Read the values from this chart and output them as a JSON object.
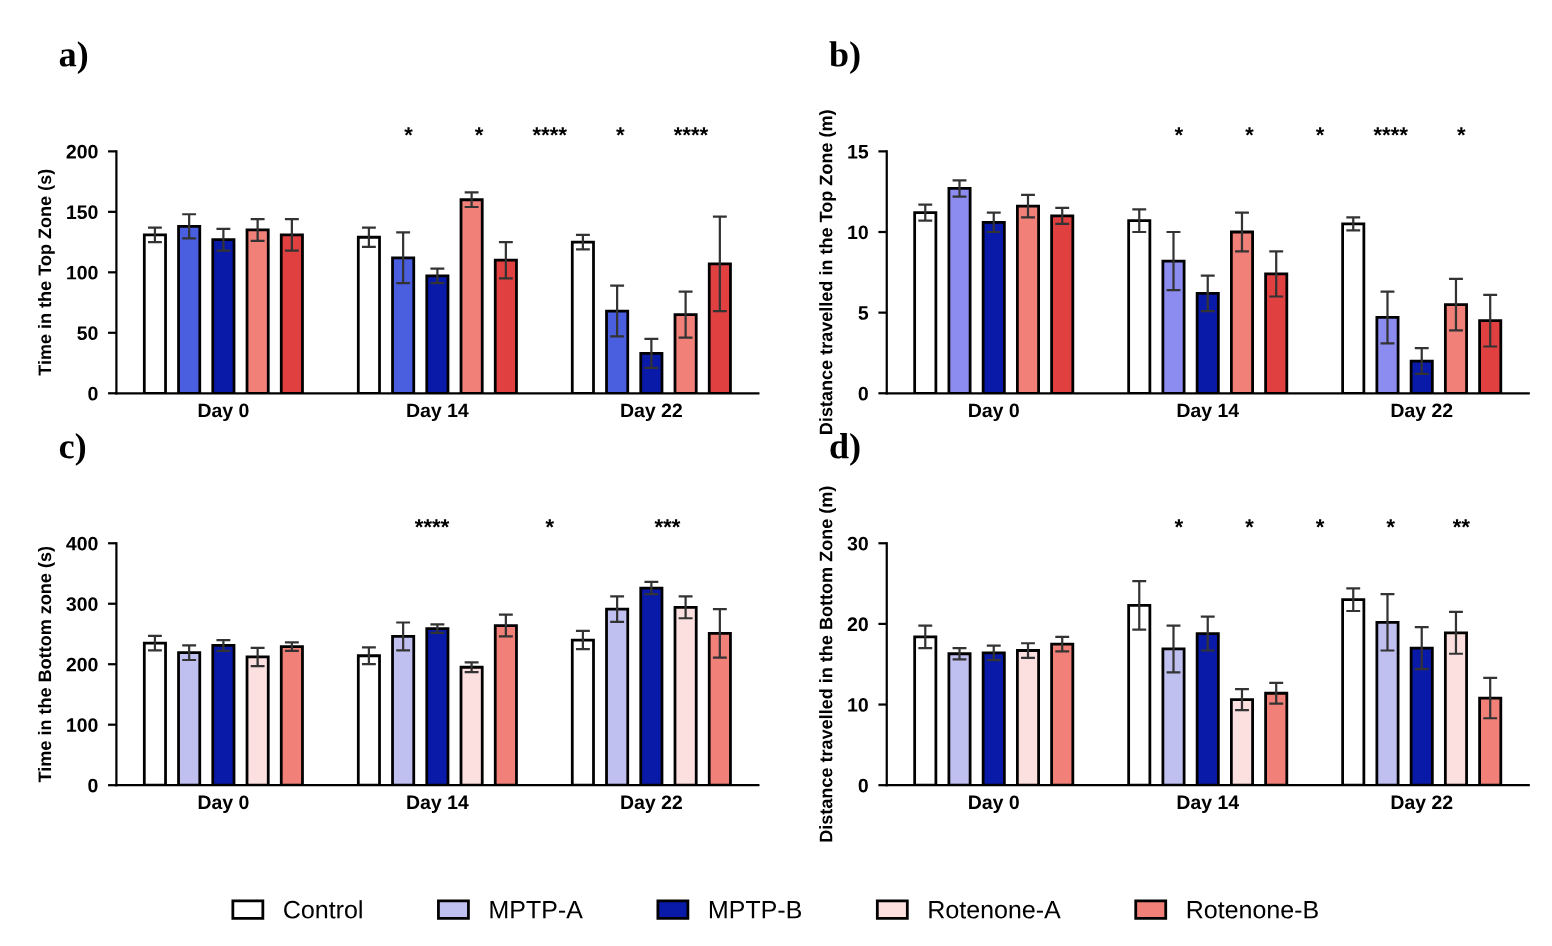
{
  "chart_data": [
    {
      "type": "bar",
      "title": "a)",
      "ylabel": "Time in the Top Zone (s)",
      "categories": [
        "Day 0",
        "Day 14",
        "Day 22"
      ],
      "ylim": [
        0,
        200
      ],
      "yticks": [
        0,
        50,
        100,
        150,
        200
      ],
      "grid": false,
      "series": [
        {
          "color": "#ffffff",
          "values": [
            131,
            129,
            125
          ],
          "errors": [
            6,
            8,
            6
          ]
        },
        {
          "color": "#4a5ee0",
          "values": [
            138,
            112,
            68
          ],
          "errors": [
            10,
            21,
            21
          ]
        },
        {
          "color": "#0a1aa8",
          "values": [
            127,
            97,
            33
          ],
          "errors": [
            9,
            6,
            12
          ]
        },
        {
          "color": "#f08078",
          "values": [
            135,
            160,
            65
          ],
          "errors": [
            9,
            6,
            19
          ]
        },
        {
          "color": "#e04040",
          "values": [
            131,
            110,
            107
          ],
          "errors": [
            13,
            15,
            39
          ]
        }
      ],
      "annotations": [
        "*",
        "*",
        "****",
        "*",
        "****"
      ]
    },
    {
      "type": "bar",
      "title": "b)",
      "ylabel": "Distance travelled in the Top Zone (m)",
      "categories": [
        "Day 0",
        "Day 14",
        "Day 22"
      ],
      "ylim": [
        0,
        15
      ],
      "yticks": [
        0,
        5,
        10,
        15
      ],
      "grid": false,
      "series": [
        {
          "color": "#ffffff",
          "values": [
            11.2,
            10.7,
            10.5
          ],
          "errors": [
            0.5,
            0.7,
            0.4
          ]
        },
        {
          "color": "#8c8cf0",
          "values": [
            12.7,
            8.2,
            4.7
          ],
          "errors": [
            0.5,
            1.8,
            1.6
          ]
        },
        {
          "color": "#0a1aa8",
          "values": [
            10.6,
            6.2,
            2.0
          ],
          "errors": [
            0.6,
            1.1,
            0.8
          ]
        },
        {
          "color": "#f08078",
          "values": [
            11.6,
            10.0,
            5.5
          ],
          "errors": [
            0.7,
            1.2,
            1.6
          ]
        },
        {
          "color": "#e04040",
          "values": [
            11.0,
            7.4,
            4.5
          ],
          "errors": [
            0.5,
            1.4,
            1.6
          ]
        }
      ],
      "annotations": [
        "*",
        "*",
        "*",
        "****",
        "*"
      ]
    },
    {
      "type": "bar",
      "title": "c)",
      "ylabel": "Time in the Bottom zone (s)",
      "categories": [
        "Day 0",
        "Day 14",
        "Day 22"
      ],
      "ylim": [
        0,
        400
      ],
      "yticks": [
        0,
        100,
        200,
        300,
        400
      ],
      "grid": false,
      "series": [
        {
          "color": "#ffffff",
          "values": [
            235,
            214,
            240
          ],
          "errors": [
            12,
            14,
            15
          ]
        },
        {
          "color": "#c0c0f0",
          "values": [
            219,
            246,
            291
          ],
          "errors": [
            12,
            23,
            21
          ]
        },
        {
          "color": "#0a1aa8",
          "values": [
            231,
            259,
            326
          ],
          "errors": [
            9,
            7,
            10
          ]
        },
        {
          "color": "#fce0e0",
          "values": [
            212,
            195,
            294
          ],
          "errors": [
            15,
            8,
            18
          ]
        },
        {
          "color": "#f08078",
          "values": [
            229,
            264,
            251
          ],
          "errors": [
            7,
            18,
            40
          ]
        }
      ],
      "annotations": [
        "****",
        "*",
        "***"
      ]
    },
    {
      "type": "bar",
      "title": "d)",
      "ylabel": "Distance travelled in the Bottom Zone (m)",
      "categories": [
        "Day 0",
        "Day 14",
        "Day 22"
      ],
      "ylim": [
        0,
        30
      ],
      "yticks": [
        0,
        10,
        20,
        30
      ],
      "grid": false,
      "legend": "bottom",
      "series": [
        {
          "name": "Control",
          "color": "#ffffff",
          "values": [
            18.4,
            22.3,
            23.0
          ],
          "errors": [
            1.4,
            3.0,
            1.4
          ]
        },
        {
          "name": "MPTP-A",
          "color": "#c0c0f0",
          "values": [
            16.3,
            16.9,
            20.2
          ],
          "errors": [
            0.7,
            2.9,
            3.5
          ]
        },
        {
          "name": "MPTP-B",
          "color": "#0a1aa8",
          "values": [
            16.4,
            18.8,
            17.0
          ],
          "errors": [
            0.9,
            2.1,
            2.6
          ]
        },
        {
          "name": "Rotenone-A",
          "color": "#fce0e0",
          "values": [
            16.7,
            10.6,
            18.9
          ],
          "errors": [
            0.9,
            1.3,
            2.6
          ]
        },
        {
          "name": "Rotenone-B",
          "color": "#f08078",
          "values": [
            17.5,
            11.4,
            10.8
          ],
          "errors": [
            0.9,
            1.3,
            2.5
          ]
        }
      ],
      "annotations": [
        "*",
        "*",
        "*",
        "*",
        "**"
      ]
    }
  ]
}
